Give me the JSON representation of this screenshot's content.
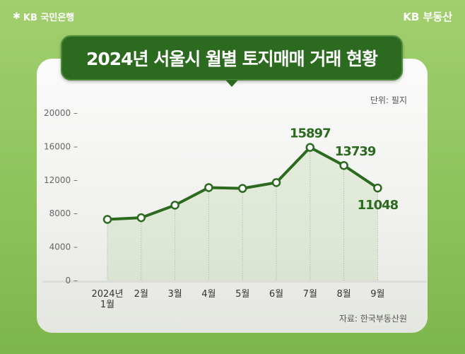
{
  "header": {
    "bank_logo": "KB 국민은행",
    "brand": "KB 부동산"
  },
  "chart_data": {
    "type": "line",
    "title": "2024년 서울시 월별 토지매매 거래 현황",
    "unit": "단위: 필지",
    "source": "자료: 한국부동산원",
    "categories": [
      "2024년\n1월",
      "2월",
      "3월",
      "4월",
      "5월",
      "6월",
      "7월",
      "8월",
      "9월"
    ],
    "values": [
      7300,
      7500,
      9000,
      11100,
      11000,
      11700,
      15897,
      13739,
      11048
    ],
    "data_labels": {
      "6": "15897",
      "7": "13739",
      "8": "11048"
    },
    "yticks": [
      "0",
      "4000",
      "8000",
      "12000",
      "16000",
      "20000"
    ],
    "ylim": [
      0,
      20000
    ],
    "colors": {
      "line": "#2b6a1f",
      "label": "#2b6a1f"
    }
  }
}
